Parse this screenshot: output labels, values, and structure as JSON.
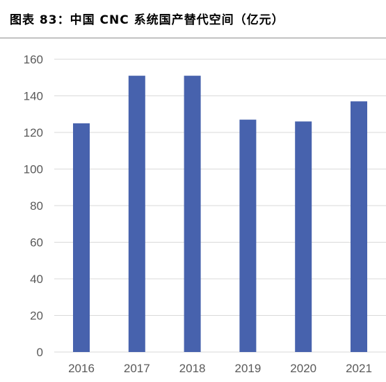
{
  "title": "图表 83：中国 CNC 系统国产替代空间（亿元）",
  "colors": {
    "bar": "#4762ad",
    "grid": "#d9d9d9",
    "axis_text": "#595959",
    "title_rule": "#8d8d8d"
  },
  "chart_data": {
    "type": "bar",
    "title": "图表 83：中国 CNC 系统国产替代空间（亿元）",
    "categories": [
      "2016",
      "2017",
      "2018",
      "2019",
      "2020",
      "2021"
    ],
    "values": [
      125,
      151,
      151,
      127,
      126,
      137
    ],
    "ylim": [
      0,
      160
    ],
    "yticks": [
      0,
      20,
      40,
      60,
      80,
      100,
      120,
      140,
      160
    ],
    "grid": true,
    "legend": "none"
  }
}
